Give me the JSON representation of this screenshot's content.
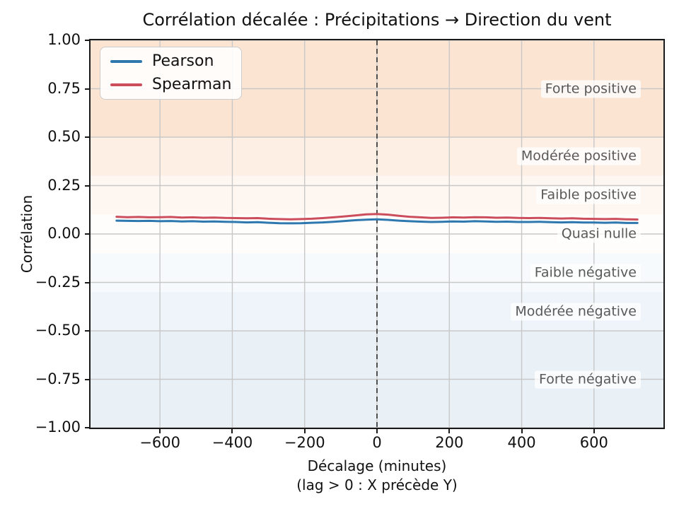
{
  "title": "Corrélation décalée : Précipitations → Direction du vent",
  "axes": {
    "ylabel": "Corrélation",
    "xlabel_line1": "Décalage (minutes)",
    "xlabel_line2": "(lag > 0 : X précède Y)",
    "xlim": [
      -792,
      792
    ],
    "ylim": [
      -1,
      1
    ],
    "x_ticks": [
      {
        "v": -600,
        "label": "−600"
      },
      {
        "v": -400,
        "label": "−400"
      },
      {
        "v": -200,
        "label": "−200"
      },
      {
        "v": 0,
        "label": "0"
      },
      {
        "v": 200,
        "label": "200"
      },
      {
        "v": 400,
        "label": "400"
      },
      {
        "v": 600,
        "label": "600"
      }
    ],
    "y_ticks": [
      {
        "v": 1.0,
        "label": "1.00"
      },
      {
        "v": 0.75,
        "label": "0.75"
      },
      {
        "v": 0.5,
        "label": "0.50"
      },
      {
        "v": 0.25,
        "label": "0.25"
      },
      {
        "v": 0.0,
        "label": "0.00"
      },
      {
        "v": -0.25,
        "label": "−0.25"
      },
      {
        "v": -0.5,
        "label": "−0.50"
      },
      {
        "v": -0.75,
        "label": "−0.75"
      },
      {
        "v": -1.0,
        "label": "−1.00"
      }
    ]
  },
  "bands": [
    {
      "label": "Forte positive",
      "from": 0.5,
      "to": 1.0,
      "label_at": 0.75,
      "color": "#fce4d3"
    },
    {
      "label": "Modérée positive",
      "from": 0.3,
      "to": 0.5,
      "label_at": 0.4,
      "color": "#fdefe4"
    },
    {
      "label": "Faible positive",
      "from": 0.1,
      "to": 0.3,
      "label_at": 0.2,
      "color": "#fef7f1"
    },
    {
      "label": "Quasi nulle",
      "from": -0.1,
      "to": 0.1,
      "label_at": 0.0,
      "color": "#fffdfb"
    },
    {
      "label": "Faible négative",
      "from": -0.3,
      "to": -0.1,
      "label_at": -0.2,
      "color": "#f6fafc"
    },
    {
      "label": "Modérée négative",
      "from": -0.5,
      "to": -0.3,
      "label_at": -0.4,
      "color": "#eef4f9"
    },
    {
      "label": "Forte négative",
      "from": -1.0,
      "to": -0.5,
      "label_at": -0.75,
      "color": "#e9f0f6"
    }
  ],
  "colors": {
    "grid": "#c8c8c8",
    "zero_line": "#404040",
    "spine": "#1a1a1a",
    "band_label_text": "#595959",
    "pearson": "#2e78b0",
    "spearman": "#cc4e5c",
    "legend_border": "#cccccc"
  },
  "chart_data": {
    "type": "line",
    "title": "Corrélation décalée : Précipitations → Direction du vent",
    "xlabel": "Décalage (minutes)",
    "xlabel_note": "(lag > 0 : X précède Y)",
    "ylabel": "Corrélation",
    "xlim": [
      -792,
      792
    ],
    "ylim": [
      -1,
      1
    ],
    "grid": true,
    "legend_position": "upper left",
    "vline_x": 0,
    "x": [
      -720,
      -690,
      -660,
      -630,
      -600,
      -570,
      -540,
      -510,
      -480,
      -450,
      -420,
      -390,
      -360,
      -330,
      -300,
      -270,
      -240,
      -210,
      -180,
      -150,
      -120,
      -90,
      -60,
      -30,
      0,
      30,
      60,
      90,
      120,
      150,
      180,
      210,
      240,
      270,
      300,
      330,
      360,
      390,
      420,
      450,
      480,
      510,
      540,
      570,
      600,
      630,
      660,
      690,
      720
    ],
    "series": [
      {
        "name": "Pearson",
        "color": "#2e78b0",
        "values": [
          0.069,
          0.068,
          0.067,
          0.068,
          0.066,
          0.067,
          0.065,
          0.066,
          0.064,
          0.065,
          0.063,
          0.062,
          0.06,
          0.061,
          0.058,
          0.056,
          0.055,
          0.056,
          0.058,
          0.06,
          0.063,
          0.067,
          0.071,
          0.074,
          0.076,
          0.073,
          0.069,
          0.066,
          0.064,
          0.062,
          0.063,
          0.065,
          0.064,
          0.066,
          0.065,
          0.063,
          0.064,
          0.062,
          0.062,
          0.063,
          0.061,
          0.06,
          0.061,
          0.059,
          0.059,
          0.058,
          0.059,
          0.057,
          0.057
        ]
      },
      {
        "name": "Spearman",
        "color": "#cc4e5c",
        "values": [
          0.089,
          0.087,
          0.088,
          0.086,
          0.087,
          0.088,
          0.085,
          0.086,
          0.084,
          0.085,
          0.083,
          0.082,
          0.081,
          0.082,
          0.079,
          0.077,
          0.076,
          0.077,
          0.079,
          0.082,
          0.086,
          0.091,
          0.096,
          0.101,
          0.103,
          0.1,
          0.094,
          0.089,
          0.086,
          0.083,
          0.084,
          0.086,
          0.085,
          0.087,
          0.086,
          0.084,
          0.085,
          0.083,
          0.082,
          0.083,
          0.081,
          0.08,
          0.081,
          0.079,
          0.078,
          0.077,
          0.078,
          0.076,
          0.075
        ]
      }
    ]
  }
}
